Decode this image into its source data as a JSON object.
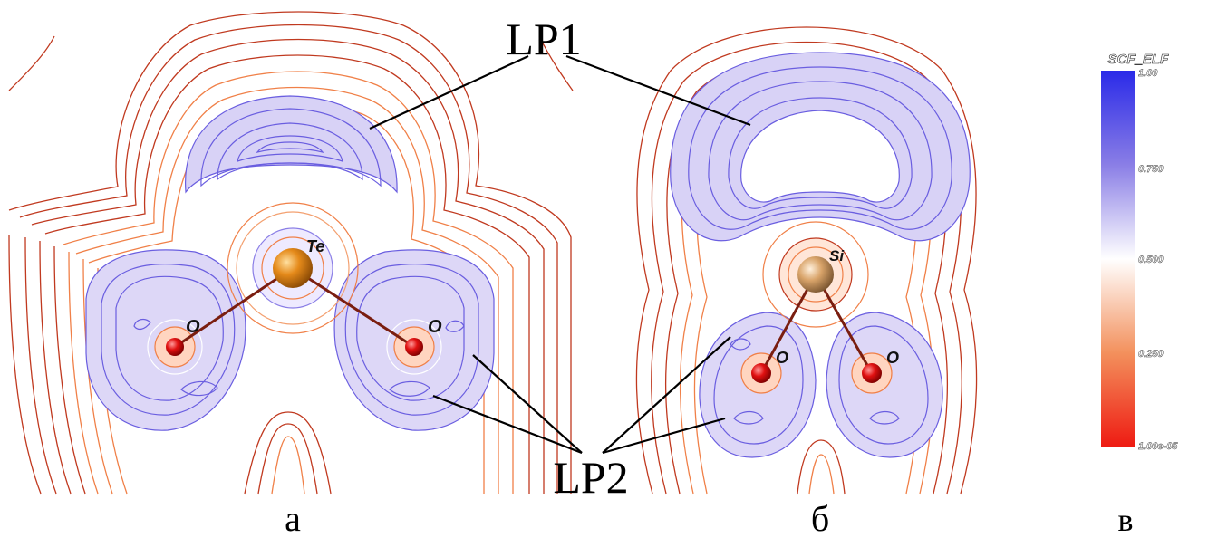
{
  "annotations": {
    "lp1": "LP1",
    "lp2": "LP2"
  },
  "panels": {
    "a": {
      "caption": "а",
      "atoms": {
        "central": "Te",
        "oxygen_left": "O",
        "oxygen_right": "O"
      }
    },
    "b": {
      "caption": "б",
      "atoms": {
        "central": "Si",
        "oxygen_left": "O",
        "oxygen_right": "O"
      }
    },
    "c": {
      "caption": "в"
    }
  },
  "colorbar": {
    "title": "SCF_ELF",
    "ticks": [
      "1.00",
      "0.750",
      "0.500",
      "0.250",
      "1.00e-05"
    ],
    "colors": {
      "high": "#2a2ae8",
      "mid": "#ffffff",
      "low": "#ee1a12"
    }
  },
  "colors": {
    "contour_outer": "#c0391f",
    "contour_orange": "#f08048",
    "contour_blue": "#6a5ee0",
    "bond": "#7a1e10",
    "te_atom": "#e58a1a",
    "si_atom": "#d9a46a",
    "oxygen_atom": "#e01010"
  }
}
